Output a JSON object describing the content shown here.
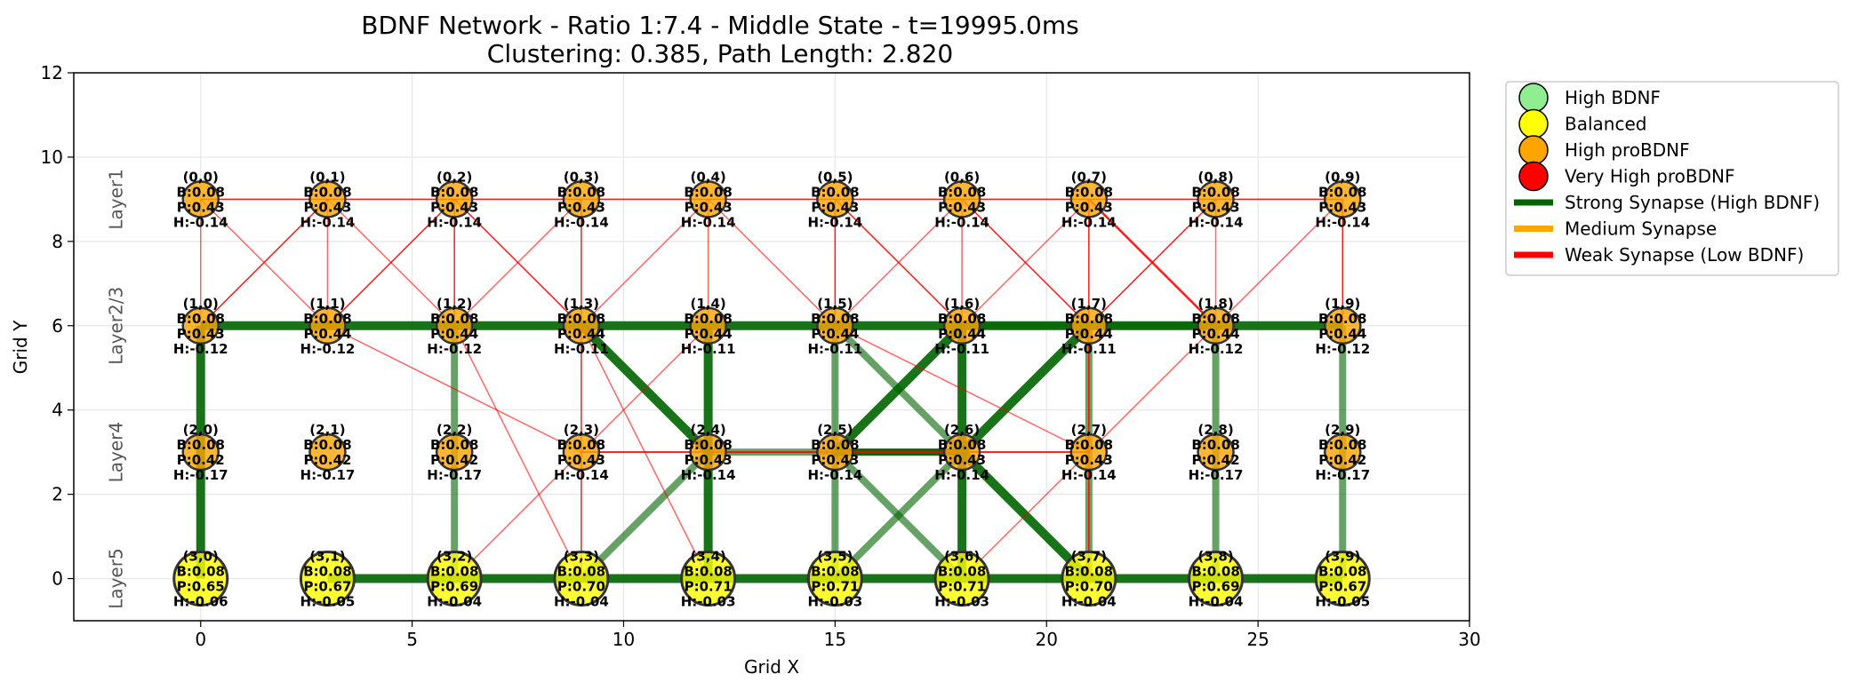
{
  "chart_data": {
    "type": "scatter",
    "title": "BDNF Network - Ratio 1:7.4 - Middle State - t=19995.0ms",
    "subtitle": "Clustering: 0.385, Path Length: 2.820",
    "xlabel": "Grid X",
    "ylabel": "Grid Y",
    "xlim": [
      -3,
      30
    ],
    "ylim": [
      -1,
      12
    ],
    "xticks": [
      "0",
      "5",
      "10",
      "15",
      "20",
      "25",
      "30"
    ],
    "yticks": [
      "0",
      "2",
      "4",
      "6",
      "8",
      "10",
      "12"
    ],
    "grid": true,
    "legend_position": "outside-top-right",
    "colors": {
      "high_bdnf": "#90ee90",
      "balanced": "#ffff00",
      "high_probdnf": "#ffa500",
      "very_high_probdnf": "#ff0000",
      "strong": "#006400",
      "medium": "#ffa500",
      "weak": "#ff0000"
    },
    "legend": [
      {
        "label": "High BDNF",
        "kind": "marker",
        "color": "#90ee90"
      },
      {
        "label": "Balanced",
        "kind": "marker",
        "color": "#ffff00"
      },
      {
        "label": "High proBDNF",
        "kind": "marker",
        "color": "#ffa500"
      },
      {
        "label": "Very High proBDNF",
        "kind": "marker",
        "color": "#ff0000"
      },
      {
        "label": "Strong Synapse (High BDNF)",
        "kind": "line",
        "color": "#006400"
      },
      {
        "label": "Medium Synapse",
        "kind": "line",
        "color": "#ffa500"
      },
      {
        "label": "Weak Synapse (Low BDNF)",
        "kind": "line",
        "color": "#ff0000"
      }
    ],
    "layers": [
      {
        "label": "Layer1",
        "y": 9,
        "B": "B:0.08",
        "P": [
          "P:0.43",
          "P:0.43",
          "P:0.43",
          "P:0.43",
          "P:0.43",
          "P:0.43",
          "P:0.43",
          "P:0.43",
          "P:0.43",
          "P:0.43"
        ],
        "H": [
          "H:-0.14",
          "H:-0.14",
          "H:-0.14",
          "H:-0.14",
          "H:-0.14",
          "H:-0.14",
          "H:-0.14",
          "H:-0.14",
          "H:-0.14",
          "H:-0.14"
        ],
        "state": "high_probdnf"
      },
      {
        "label": "Layer2/3",
        "y": 6,
        "B": "B:0.08",
        "P": [
          "P:0.43",
          "P:0.44",
          "P:0.44",
          "P:0.44",
          "P:0.44",
          "P:0.44",
          "P:0.44",
          "P:0.44",
          "P:0.44",
          "P:0.44"
        ],
        "H": [
          "H:-0.12",
          "H:-0.12",
          "H:-0.12",
          "H:-0.11",
          "H:-0.11",
          "H:-0.11",
          "H:-0.11",
          "H:-0.11",
          "H:-0.12",
          "H:-0.12"
        ],
        "state": "high_probdnf"
      },
      {
        "label": "Layer4",
        "y": 3,
        "B": "B:0.08",
        "P": [
          "P:0.42",
          "P:0.42",
          "P:0.42",
          "P:0.43",
          "P:0.43",
          "P:0.43",
          "P:0.43",
          "P:0.43",
          "P:0.42",
          "P:0.42"
        ],
        "H": [
          "H:-0.17",
          "H:-0.17",
          "H:-0.17",
          "H:-0.14",
          "H:-0.14",
          "H:-0.14",
          "H:-0.14",
          "H:-0.14",
          "H:-0.17",
          "H:-0.17"
        ],
        "state": "high_probdnf"
      },
      {
        "label": "Layer5",
        "y": 0,
        "B": "B:0.08",
        "P": [
          "P:0.65",
          "P:0.67",
          "P:0.69",
          "P:0.70",
          "P:0.71",
          "P:0.71",
          "P:0.71",
          "P:0.70",
          "P:0.69",
          "P:0.67"
        ],
        "H": [
          "H:-0.06",
          "H:-0.05",
          "H:-0.04",
          "H:-0.04",
          "H:-0.03",
          "H:-0.03",
          "H:-0.03",
          "H:-0.04",
          "H:-0.04",
          "H:-0.05"
        ],
        "state": "balanced"
      }
    ],
    "columns_x": [
      0,
      3,
      6,
      9,
      12,
      15,
      18,
      21,
      24,
      27
    ],
    "node_labels": [
      [
        "(0,0)",
        "(0,1)",
        "(0,2)",
        "(0,3)",
        "(0,4)",
        "(0,5)",
        "(0,6)",
        "(0,7)",
        "(0,8)",
        "(0,9)"
      ],
      [
        "(1,0)",
        "(1,1)",
        "(1,2)",
        "(1,3)",
        "(1,4)",
        "(1,5)",
        "(1,6)",
        "(1,7)",
        "(1,8)",
        "(1,9)"
      ],
      [
        "(2,0)",
        "(2,1)",
        "(2,2)",
        "(2,3)",
        "(2,4)",
        "(2,5)",
        "(2,6)",
        "(2,7)",
        "(2,8)",
        "(2,9)"
      ],
      [
        "(3,0)",
        "(3,1)",
        "(3,2)",
        "(3,3)",
        "(3,4)",
        "(3,5)",
        "(3,6)",
        "(3,7)",
        "(3,8)",
        "(3,9)"
      ]
    ],
    "edges": [
      {
        "a": [
          0,
          0
        ],
        "b": [
          0,
          9
        ],
        "type": "weak",
        "w": 1.5,
        "alpha": 0.9
      },
      {
        "a": [
          0,
          0
        ],
        "b": [
          1,
          0
        ],
        "type": "weak",
        "w": 1.5,
        "alpha": 0.6
      },
      {
        "a": [
          0,
          0
        ],
        "b": [
          1,
          1
        ],
        "type": "weak",
        "w": 1.5,
        "alpha": 0.6
      },
      {
        "a": [
          0,
          1
        ],
        "b": [
          1,
          0
        ],
        "type": "weak",
        "w": 1.5,
        "alpha": 0.9
      },
      {
        "a": [
          0,
          1
        ],
        "b": [
          1,
          1
        ],
        "type": "weak",
        "w": 1.5,
        "alpha": 0.6
      },
      {
        "a": [
          0,
          1
        ],
        "b": [
          1,
          2
        ],
        "type": "weak",
        "w": 1.5,
        "alpha": 0.6
      },
      {
        "a": [
          0,
          2
        ],
        "b": [
          1,
          1
        ],
        "type": "weak",
        "w": 1.5,
        "alpha": 0.9
      },
      {
        "a": [
          0,
          2
        ],
        "b": [
          1,
          2
        ],
        "type": "weak",
        "w": 1.5,
        "alpha": 0.9
      },
      {
        "a": [
          0,
          2
        ],
        "b": [
          1,
          3
        ],
        "type": "weak",
        "w": 1.5,
        "alpha": 0.9
      },
      {
        "a": [
          0,
          3
        ],
        "b": [
          1,
          2
        ],
        "type": "weak",
        "w": 1.5,
        "alpha": 0.6
      },
      {
        "a": [
          0,
          3
        ],
        "b": [
          1,
          3
        ],
        "type": "weak",
        "w": 1.5,
        "alpha": 0.9
      },
      {
        "a": [
          0,
          4
        ],
        "b": [
          1,
          3
        ],
        "type": "weak",
        "w": 1.5,
        "alpha": 0.6
      },
      {
        "a": [
          0,
          4
        ],
        "b": [
          1,
          4
        ],
        "type": "weak",
        "w": 1.5,
        "alpha": 0.6
      },
      {
        "a": [
          0,
          4
        ],
        "b": [
          1,
          5
        ],
        "type": "weak",
        "w": 1.5,
        "alpha": 0.6
      },
      {
        "a": [
          0,
          5
        ],
        "b": [
          1,
          5
        ],
        "type": "weak",
        "w": 1.5,
        "alpha": 0.9
      },
      {
        "a": [
          0,
          5
        ],
        "b": [
          1,
          6
        ],
        "type": "weak",
        "w": 1.5,
        "alpha": 0.9
      },
      {
        "a": [
          0,
          6
        ],
        "b": [
          1,
          5
        ],
        "type": "weak",
        "w": 1.5,
        "alpha": 0.6
      },
      {
        "a": [
          0,
          6
        ],
        "b": [
          1,
          6
        ],
        "type": "weak",
        "w": 1.5,
        "alpha": 0.6
      },
      {
        "a": [
          0,
          6
        ],
        "b": [
          1,
          7
        ],
        "type": "weak",
        "w": 1.5,
        "alpha": 0.9
      },
      {
        "a": [
          0,
          7
        ],
        "b": [
          1,
          6
        ],
        "type": "weak",
        "w": 1.5,
        "alpha": 0.6
      },
      {
        "a": [
          0,
          7
        ],
        "b": [
          1,
          7
        ],
        "type": "weak",
        "w": 1.5,
        "alpha": 0.9
      },
      {
        "a": [
          0,
          7
        ],
        "b": [
          1,
          8
        ],
        "type": "weak",
        "w": 2.5,
        "alpha": 0.9
      },
      {
        "a": [
          0,
          8
        ],
        "b": [
          1,
          7
        ],
        "type": "weak",
        "w": 1.5,
        "alpha": 0.9
      },
      {
        "a": [
          0,
          8
        ],
        "b": [
          1,
          8
        ],
        "type": "weak",
        "w": 1.5,
        "alpha": 0.6
      },
      {
        "a": [
          0,
          9
        ],
        "b": [
          1,
          8
        ],
        "type": "weak",
        "w": 1.5,
        "alpha": 0.6
      },
      {
        "a": [
          0,
          9
        ],
        "b": [
          1,
          9
        ],
        "type": "weak",
        "w": 1.5,
        "alpha": 0.9
      },
      {
        "a": [
          1,
          0
        ],
        "b": [
          1,
          9
        ],
        "type": "strong",
        "w": 10,
        "alpha": 0.9
      },
      {
        "a": [
          1,
          6
        ],
        "b": [
          1,
          8
        ],
        "type": "strong",
        "w": 8,
        "alpha": 0.6
      },
      {
        "a": [
          1,
          0
        ],
        "b": [
          3,
          0
        ],
        "type": "strong",
        "w": 10,
        "alpha": 0.9
      },
      {
        "a": [
          1,
          2
        ],
        "b": [
          3,
          2
        ],
        "type": "strong",
        "w": 8,
        "alpha": 0.6
      },
      {
        "a": [
          1,
          4
        ],
        "b": [
          3,
          4
        ],
        "type": "strong",
        "w": 10,
        "alpha": 0.9
      },
      {
        "a": [
          1,
          5
        ],
        "b": [
          3,
          5
        ],
        "type": "strong",
        "w": 8,
        "alpha": 0.6
      },
      {
        "a": [
          1,
          6
        ],
        "b": [
          3,
          6
        ],
        "type": "strong",
        "w": 10,
        "alpha": 0.9
      },
      {
        "a": [
          1,
          7
        ],
        "b": [
          3,
          7
        ],
        "type": "strong",
        "w": 8,
        "alpha": 0.6
      },
      {
        "a": [
          1,
          8
        ],
        "b": [
          3,
          8
        ],
        "type": "strong",
        "w": 8,
        "alpha": 0.6
      },
      {
        "a": [
          1,
          9
        ],
        "b": [
          3,
          9
        ],
        "type": "strong",
        "w": 8,
        "alpha": 0.6
      },
      {
        "a": [
          1,
          3
        ],
        "b": [
          2,
          4
        ],
        "type": "strong",
        "w": 10,
        "alpha": 0.9
      },
      {
        "a": [
          1,
          5
        ],
        "b": [
          2,
          6
        ],
        "type": "strong",
        "w": 8,
        "alpha": 0.6
      },
      {
        "a": [
          1,
          6
        ],
        "b": [
          2,
          5
        ],
        "type": "strong",
        "w": 10,
        "alpha": 0.9
      },
      {
        "a": [
          1,
          7
        ],
        "b": [
          2,
          6
        ],
        "type": "strong",
        "w": 10,
        "alpha": 0.9
      },
      {
        "a": [
          2,
          4
        ],
        "b": [
          2,
          6
        ],
        "type": "strong",
        "w": 8,
        "alpha": 0.6
      },
      {
        "a": [
          2,
          5
        ],
        "b": [
          2,
          6
        ],
        "type": "strong",
        "w": 8,
        "alpha": 0.9
      },
      {
        "a": [
          2,
          3
        ],
        "b": [
          2,
          7
        ],
        "type": "weak",
        "w": 2,
        "alpha": 0.9
      },
      {
        "a": [
          2,
          4
        ],
        "b": [
          3,
          3
        ],
        "type": "strong",
        "w": 8,
        "alpha": 0.6
      },
      {
        "a": [
          2,
          5
        ],
        "b": [
          3,
          6
        ],
        "type": "strong",
        "w": 8,
        "alpha": 0.6
      },
      {
        "a": [
          2,
          6
        ],
        "b": [
          3,
          5
        ],
        "type": "strong",
        "w": 8,
        "alpha": 0.6
      },
      {
        "a": [
          2,
          6
        ],
        "b": [
          3,
          7
        ],
        "type": "strong",
        "w": 10,
        "alpha": 0.9
      },
      {
        "a": [
          3,
          1
        ],
        "b": [
          3,
          9
        ],
        "type": "strong",
        "w": 10,
        "alpha": 0.9
      },
      {
        "a": [
          1,
          1
        ],
        "b": [
          2,
          3
        ],
        "type": "weak",
        "w": 1.5,
        "alpha": 0.6
      },
      {
        "a": [
          1,
          2
        ],
        "b": [
          3,
          3
        ],
        "type": "weak",
        "w": 1.5,
        "alpha": 0.6
      },
      {
        "a": [
          1,
          3
        ],
        "b": [
          3,
          3
        ],
        "type": "weak",
        "w": 1.5,
        "alpha": 0.9
      },
      {
        "a": [
          1,
          3
        ],
        "b": [
          3,
          4
        ],
        "type": "weak",
        "w": 1.5,
        "alpha": 0.6
      },
      {
        "a": [
          1,
          4
        ],
        "b": [
          2,
          3
        ],
        "type": "weak",
        "w": 1.5,
        "alpha": 0.6
      },
      {
        "a": [
          1,
          5
        ],
        "b": [
          2,
          7
        ],
        "type": "weak",
        "w": 1.5,
        "alpha": 0.6
      },
      {
        "a": [
          1,
          8
        ],
        "b": [
          2,
          7
        ],
        "type": "weak",
        "w": 1.5,
        "alpha": 0.6
      },
      {
        "a": [
          1,
          7
        ],
        "b": [
          3,
          7
        ],
        "type": "weak",
        "w": 1.5,
        "alpha": 0.9
      },
      {
        "a": [
          2,
          3
        ],
        "b": [
          3,
          2
        ],
        "type": "weak",
        "w": 1.5,
        "alpha": 0.6
      },
      {
        "a": [
          2,
          7
        ],
        "b": [
          3,
          6
        ],
        "type": "weak",
        "w": 1.5,
        "alpha": 0.6
      }
    ]
  }
}
